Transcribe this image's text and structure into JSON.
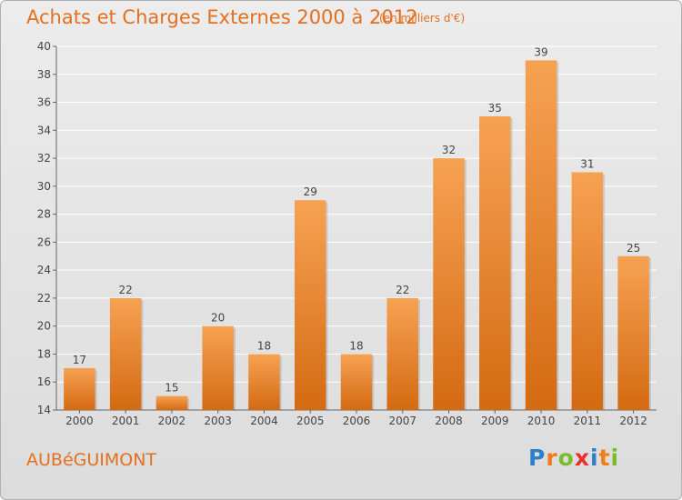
{
  "title": "Achats et Charges Externes 2000 à 2012",
  "subtitle": "(en milliers d'€)",
  "commune": "AUBéGUIMONT",
  "logo": {
    "letters": [
      "P",
      "r",
      "o",
      "x",
      "i",
      "t",
      "i"
    ],
    "colors": [
      "#2f7fc8",
      "#f07d1a",
      "#7cbc2a",
      "#e8312a",
      "#2f7fc8",
      "#f07d1a",
      "#7cbc2a"
    ]
  },
  "colors": {
    "bar_top": "#f6a253",
    "bar_bottom": "#d46a12",
    "grid": "#ffffff",
    "axis": "#666666",
    "text": "#444444",
    "accent": "#e4701e"
  },
  "chart_data": {
    "type": "bar",
    "title": "Achats et Charges Externes 2000 à 2012",
    "subtitle": "(en milliers d'€)",
    "categories": [
      "2000",
      "2001",
      "2002",
      "2003",
      "2004",
      "2005",
      "2006",
      "2007",
      "2008",
      "2009",
      "2010",
      "2011",
      "2012"
    ],
    "values": [
      17,
      22,
      15,
      20,
      18,
      29,
      18,
      22,
      32,
      35,
      39,
      31,
      25
    ],
    "ylim": [
      14,
      40
    ],
    "yticks": [
      14,
      16,
      18,
      20,
      22,
      24,
      26,
      28,
      30,
      32,
      34,
      36,
      38,
      40
    ],
    "grid": true,
    "xlabel": "",
    "ylabel": ""
  }
}
